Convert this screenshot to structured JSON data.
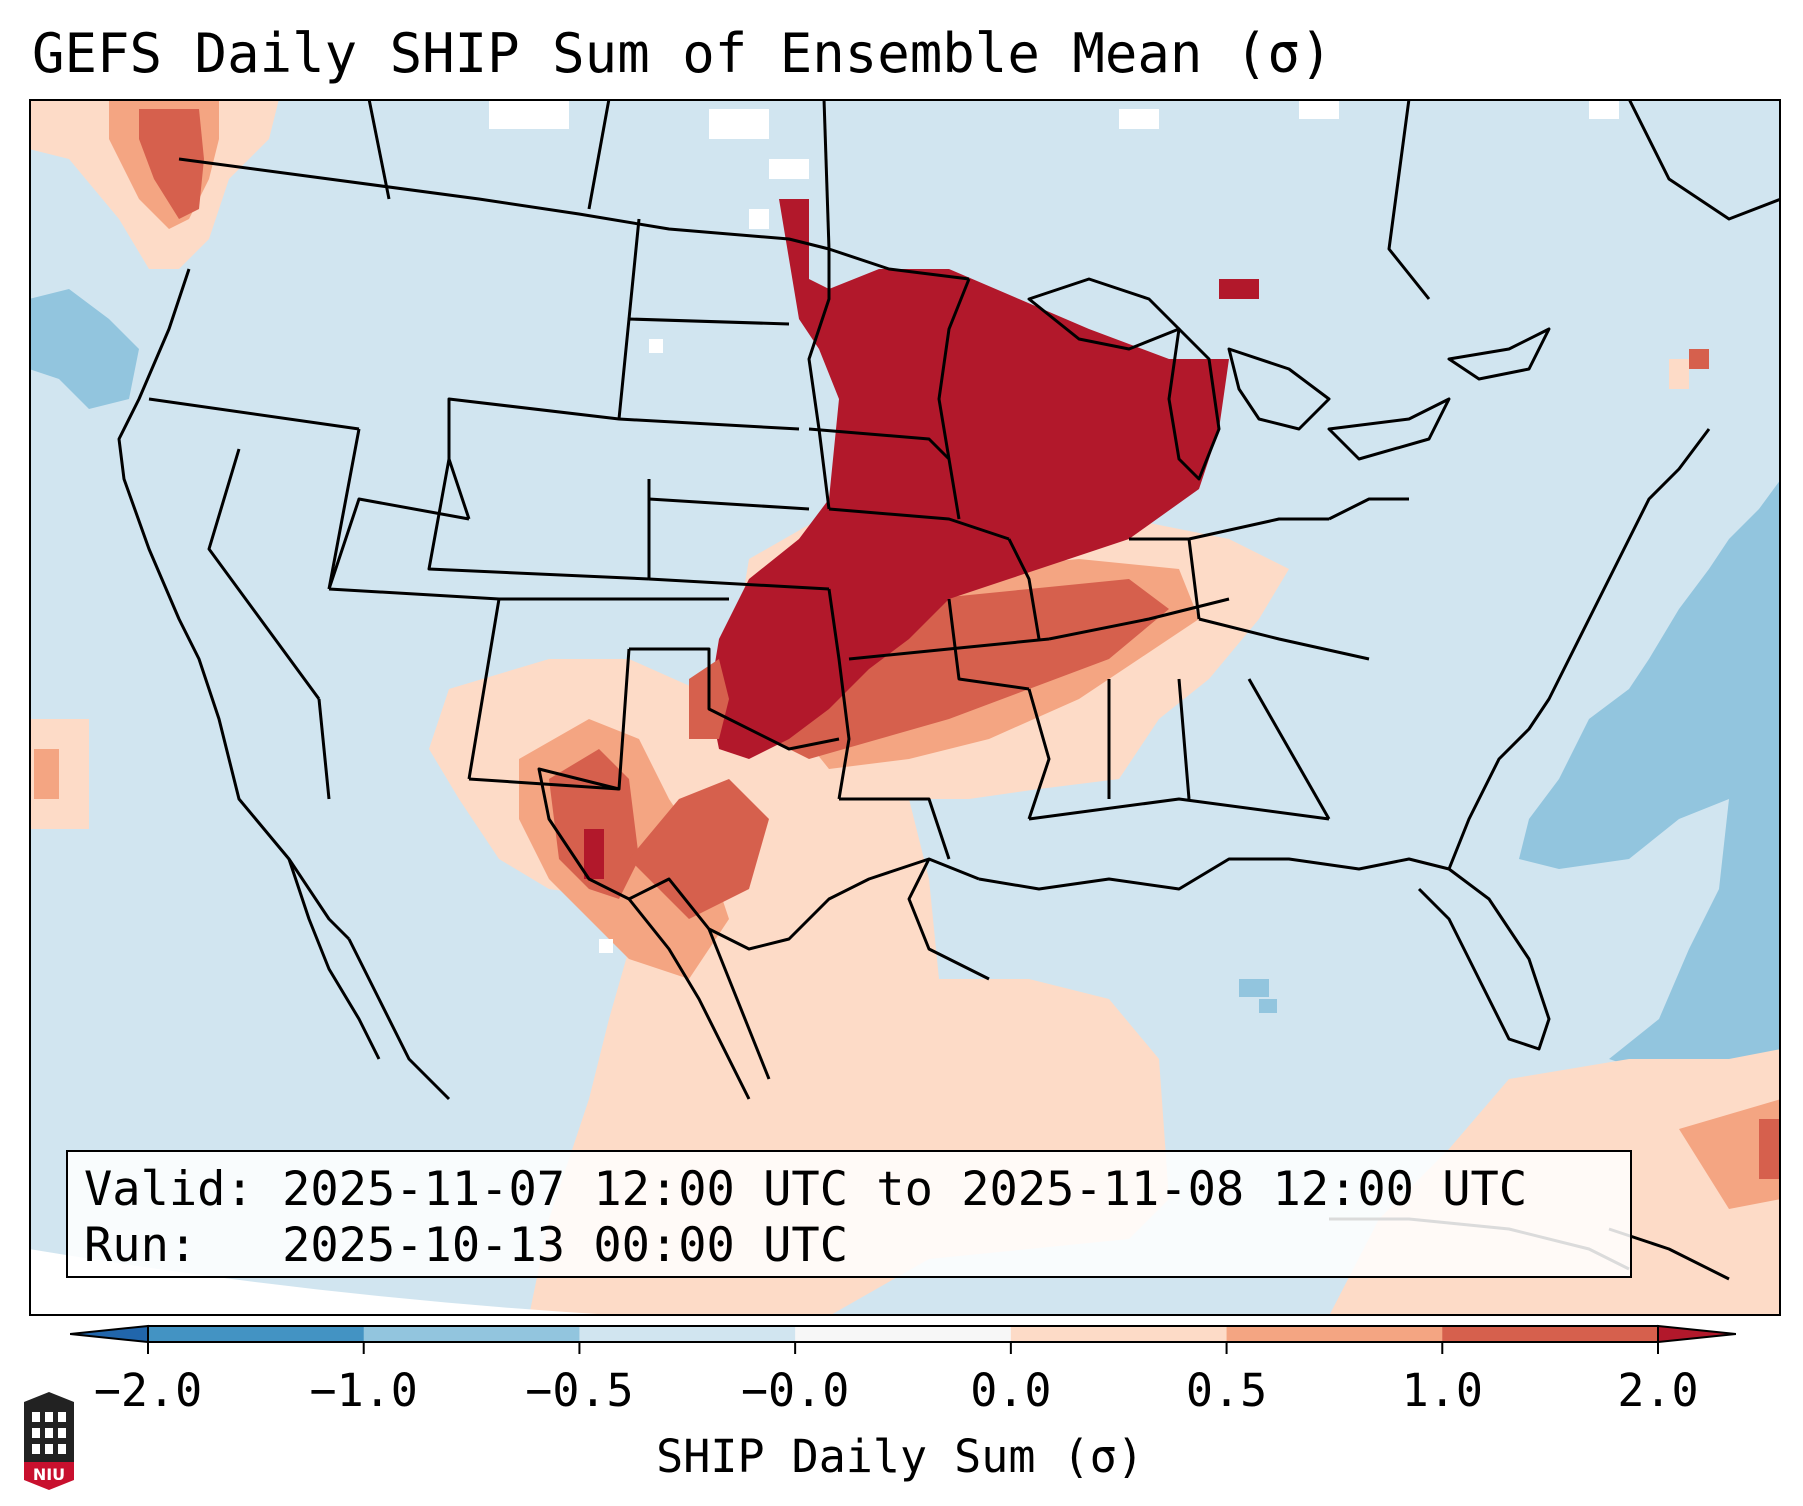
{
  "title": "GEFS Daily SHIP Sum of Ensemble Mean (σ)",
  "info": {
    "valid_label": "Valid:",
    "valid_value": "2025-11-07 12:00 UTC to 2025-11-08 12:00 UTC",
    "run_label": "Run:",
    "run_value": "2025-10-13 00:00 UTC"
  },
  "colorbar": {
    "label": "SHIP Daily Sum (σ)",
    "ticks": [
      "−2.0",
      "−1.0",
      "−0.5",
      "−0.0",
      "0.0",
      "0.5",
      "1.0",
      "2.0"
    ],
    "bins": [
      {
        "from": -2.0,
        "to": -1.0,
        "color": "#4393c3"
      },
      {
        "from": -1.0,
        "to": -0.5,
        "color": "#92c5de"
      },
      {
        "from": -0.5,
        "to": 0.0,
        "color": "#d1e5f0"
      },
      {
        "from": 0.0,
        "to": 0.0,
        "color": "#f7f7f7"
      },
      {
        "from": 0.0,
        "to": 0.5,
        "color": "#fddbc7"
      },
      {
        "from": 0.5,
        "to": 1.0,
        "color": "#f4a582"
      },
      {
        "from": 1.0,
        "to": 2.0,
        "color": "#d6604d"
      }
    ],
    "under_color": "#2166ac",
    "over_color": "#b2182b"
  },
  "logo_text": "NIU",
  "colors": {
    "background": "#d1e5f0",
    "very_high": "#b2182b",
    "high": "#d6604d",
    "moderate": "#f4a582",
    "low": "#fddbc7",
    "neg_moderate": "#92c5de"
  }
}
